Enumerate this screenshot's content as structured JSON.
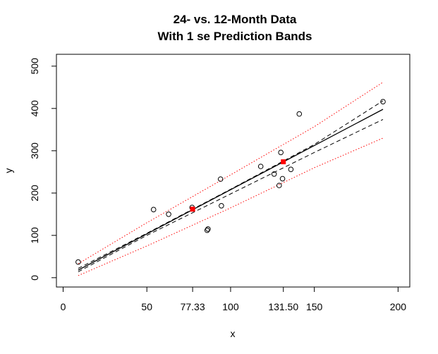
{
  "chart_data": {
    "type": "scatter",
    "title": [
      "24- vs. 12-Month Data",
      "With 1 se Prediction Bands"
    ],
    "xlabel": "x",
    "ylabel": "y",
    "xlim": [
      -4,
      207
    ],
    "ylim": [
      -22,
      528
    ],
    "x_ticks": [
      0,
      50,
      100,
      150,
      200
    ],
    "y_ticks": [
      0,
      100,
      200,
      300,
      400,
      500
    ],
    "highlight_ticks": [
      {
        "value": 77.33,
        "label": "77.33",
        "color": "#ff0000"
      },
      {
        "value": 131.5,
        "label": "131.50",
        "color": "#ff0000"
      }
    ],
    "points": [
      {
        "x": 9,
        "y": 37
      },
      {
        "x": 54,
        "y": 161
      },
      {
        "x": 63,
        "y": 150
      },
      {
        "x": 77,
        "y": 166
      },
      {
        "x": 86,
        "y": 112
      },
      {
        "x": 86.5,
        "y": 115
      },
      {
        "x": 94,
        "y": 233
      },
      {
        "x": 94.5,
        "y": 170
      },
      {
        "x": 118,
        "y": 263
      },
      {
        "x": 126,
        "y": 245
      },
      {
        "x": 129,
        "y": 218
      },
      {
        "x": 130,
        "y": 296
      },
      {
        "x": 131,
        "y": 234
      },
      {
        "x": 136,
        "y": 256
      },
      {
        "x": 141,
        "y": 387
      },
      {
        "x": 191,
        "y": 416
      }
    ],
    "predicted_points": [
      {
        "x": 77.33,
        "y": 162,
        "color": "#ff0000"
      },
      {
        "x": 131.5,
        "y": 274,
        "color": "#ff0000"
      }
    ],
    "fit_line": [
      [
        9,
        18
      ],
      [
        191,
        398
      ]
    ],
    "confidence_upper": [
      [
        9,
        22
      ],
      [
        50,
        105
      ],
      [
        100,
        209
      ],
      [
        150,
        315
      ],
      [
        191,
        418
      ]
    ],
    "confidence_lower": [
      [
        9,
        14
      ],
      [
        50,
        100
      ],
      [
        100,
        198
      ],
      [
        150,
        296
      ],
      [
        191,
        374
      ]
    ],
    "prediction_upper": [
      [
        9,
        33
      ],
      [
        50,
        130
      ],
      [
        100,
        243
      ],
      [
        150,
        357
      ],
      [
        191,
        462
      ]
    ],
    "prediction_lower": [
      [
        9,
        5
      ],
      [
        50,
        75
      ],
      [
        100,
        165
      ],
      [
        150,
        260
      ],
      [
        191,
        330
      ]
    ],
    "colors": {
      "points": "#000000",
      "fit": "#000000",
      "confidence": "#000000",
      "prediction": "#ff0000",
      "predicted": "#ff0000"
    },
    "legend": "none",
    "grid": false
  }
}
